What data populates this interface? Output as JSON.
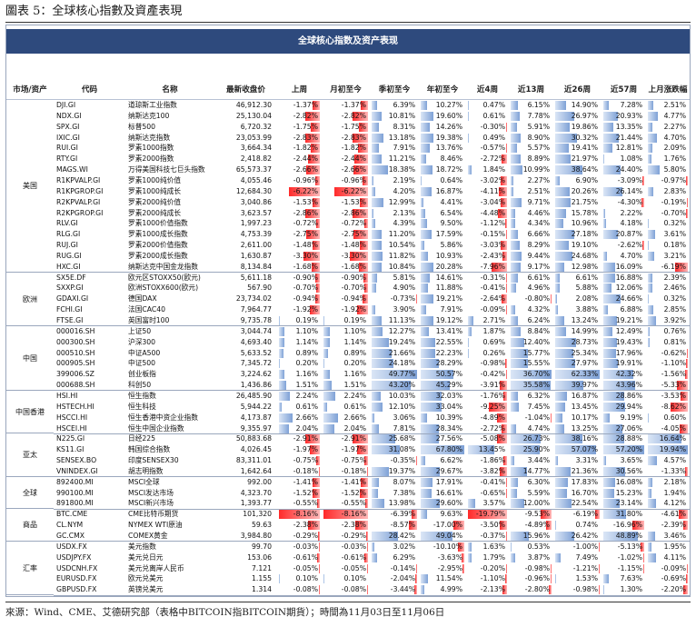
{
  "header": {
    "figure_title": "圖表 5：全球核心指數及資產表現"
  },
  "table": {
    "title": "全球核心指数及资产表现",
    "columns": [
      "市场/资产",
      "代码",
      "名称",
      "最新收盘价",
      "上周",
      "月初至今",
      "季初至今",
      "年初至今",
      "近4周",
      "近13周",
      "近26周",
      "近57周",
      "上月涨跌幅"
    ],
    "groups": [
      {
        "region": "美国",
        "rows": [
          [
            "DJI.GI",
            "道琼斯工业指数",
            "46,912.30",
            -1.37,
            -1.37,
            6.39,
            10.27,
            0.47,
            6.15,
            14.9,
            7.28,
            2.51
          ],
          [
            "NDX.GI",
            "纳斯达克100",
            "25,130.04",
            -2.82,
            -2.82,
            10.81,
            19.6,
            0.61,
            7.78,
            26.97,
            20.93,
            4.77
          ],
          [
            "SPX.GI",
            "标普500",
            "6,720.32",
            -1.75,
            -1.75,
            8.31,
            14.26,
            -0.3,
            5.91,
            19.86,
            13.35,
            2.27
          ],
          [
            "IXIC.GI",
            "纳斯达克指数",
            "23,053.99",
            -2.83,
            -2.83,
            13.18,
            19.38,
            0.49,
            8.9,
            30.32,
            21.44,
            4.7
          ],
          [
            "RUI.GI",
            "罗素1000指数",
            "3,664.34",
            -1.82,
            -1.82,
            7.91,
            13.76,
            -0.57,
            5.57,
            19.41,
            12.81,
            2.09
          ],
          [
            "RTY.GI",
            "罗素2000指数",
            "2,418.82",
            -2.44,
            -2.44,
            11.21,
            8.46,
            -2.72,
            8.89,
            21.97,
            1.08,
            1.76
          ],
          [
            "MAGS.WI",
            "万得美国科技七巨头指数",
            "65,573.37",
            -2.66,
            -2.66,
            18.38,
            18.72,
            1.84,
            10.99,
            38.64,
            24.4,
            5.8
          ],
          [
            "R1KPVALP.GI",
            "罗素1000纯价值",
            "4,055.46",
            -0.96,
            -0.96,
            2.19,
            0.64,
            -3.02,
            2.27,
            6.9,
            -3.09,
            -0.97
          ],
          [
            "R1KPGROP.GI",
            "罗素1000纯成长",
            "12,684.30",
            -6.22,
            -6.22,
            4.2,
            16.87,
            -4.11,
            2.51,
            20.26,
            26.14,
            2.83
          ],
          [
            "R2KPVALP.GI",
            "罗素2000纯价值",
            "3,040.86",
            -1.53,
            -1.53,
            12.99,
            4.41,
            -3.04,
            9.71,
            21.75,
            -4.3,
            -0.19
          ],
          [
            "R2KPGROP.GI",
            "罗素2000纯成长",
            "3,623.57",
            -2.86,
            -2.86,
            2.13,
            6.54,
            -4.48,
            4.46,
            15.78,
            2.22,
            -0.7
          ],
          [
            "RLV.GI",
            "罗素1000价值指数",
            "1,997.23",
            -0.72,
            -0.72,
            4.39,
            9.5,
            -1.12,
            4.34,
            10.96,
            4.18,
            0.32
          ],
          [
            "RLG.GI",
            "罗素1000成长指数",
            "4,753.39",
            -2.75,
            -2.75,
            11.2,
            17.59,
            -0.15,
            6.66,
            27.18,
            20.87,
            3.61
          ],
          [
            "RUJ.GI",
            "罗素2000价值指数",
            "2,611.00",
            -1.48,
            -1.48,
            10.54,
            5.86,
            -3.03,
            8.29,
            19.1,
            -2.62,
            0.18
          ],
          [
            "RUG.GI",
            "罗素2000成长指数",
            "1,630.87",
            -3.3,
            -3.3,
            11.82,
            10.93,
            -2.43,
            9.44,
            24.68,
            4.7,
            3.21
          ],
          [
            "HXC.GI",
            "纳斯达克中国金龙指数",
            "8,134.84",
            -1.68,
            -1.68,
            10.84,
            20.28,
            -7.96,
            9.17,
            12.98,
            16.09,
            -6.19
          ]
        ]
      },
      {
        "region": "欧洲",
        "rows": [
          [
            "SX5E.DF",
            "欧元区STOXX50(欧元)",
            "5,611.18",
            -0.9,
            -0.9,
            5.81,
            14.61,
            -0.31,
            6.61,
            6.61,
            16.88,
            2.39
          ],
          [
            "SXXP.GI",
            "欧洲STOXX600(欧元)",
            "567.90",
            -0.7,
            -0.7,
            4.9,
            11.88,
            -0.41,
            4.96,
            5.88,
            12.06,
            2.46
          ],
          [
            "GDAXI.GI",
            "德国DAX",
            "23,734.02",
            -0.94,
            -0.94,
            -0.73,
            19.21,
            -2.64,
            -0.8,
            2.08,
            24.66,
            0.32
          ],
          [
            "FCHI.GI",
            "法国CAC40",
            "7,964.77",
            -1.92,
            -1.92,
            3.9,
            7.91,
            -0.09,
            4.32,
            3.88,
            6.88,
            2.85
          ],
          [
            "FTSE.GI",
            "英国富时100",
            "9,735.78",
            0.19,
            0.19,
            11.13,
            19.12,
            2.71,
            6.24,
            13.24,
            19.21,
            3.92
          ]
        ]
      },
      {
        "region": "中国",
        "rows": [
          [
            "000016.SH",
            "上证50",
            "3,044.74",
            1.1,
            1.1,
            12.27,
            13.41,
            1.87,
            8.84,
            14.99,
            12.49,
            0.76
          ],
          [
            "000300.SH",
            "沪深300",
            "4,693.40",
            1.14,
            1.14,
            19.24,
            22.55,
            0.69,
            12.4,
            28.73,
            19.43,
            0.81
          ],
          [
            "000510.SH",
            "中证A500",
            "5,633.52",
            0.89,
            0.89,
            21.66,
            22.23,
            0.26,
            15.77,
            25.34,
            17.96,
            -0.62
          ],
          [
            "000905.SH",
            "中证500",
            "7,345.72",
            0.2,
            0.2,
            24.18,
            28.29,
            -0.98,
            15.55,
            27.97,
            19.91,
            -1.1
          ],
          [
            "399006.SZ",
            "创业板指",
            "3,224.62",
            1.16,
            1.16,
            49.77,
            50.57,
            -0.42,
            36.7,
            62.33,
            42.32,
            -1.56
          ],
          [
            "000688.SH",
            "科创50",
            "1,436.86",
            1.51,
            1.51,
            43.2,
            45.29,
            -3.91,
            35.58,
            39.97,
            43.96,
            -5.33
          ]
        ]
      },
      {
        "region": "中国香港",
        "rows": [
          [
            "HSI.HI",
            "恒生指数",
            "26,485.90",
            2.24,
            2.24,
            10.03,
            32.03,
            -1.76,
            6.32,
            16.87,
            28.86,
            -3.53
          ],
          [
            "HSTECH.HI",
            "恒生科技",
            "5,944.22",
            0.61,
            0.61,
            12.1,
            33.04,
            -9.25,
            7.45,
            13.45,
            29.94,
            -8.62
          ],
          [
            "HSCCI.HI",
            "恒生香港中资企业指数",
            "4,173.87",
            2.66,
            2.66,
            3.06,
            10.39,
            -4.89,
            -1.04,
            10.17,
            9.19,
            0.6
          ],
          [
            "HSCEI.HI",
            "恒生中国企业指数",
            "9,355.97",
            2.04,
            2.04,
            7.81,
            28.34,
            -2.72,
            4.74,
            13.25,
            27.06,
            -4.05
          ]
        ]
      },
      {
        "region": "亚太",
        "rows": [
          [
            "N225.GI",
            "日经225",
            "50,883.68",
            -2.91,
            -2.91,
            25.68,
            27.56,
            -5.08,
            26.73,
            38.16,
            28.88,
            16.64
          ],
          [
            "KS11.GI",
            "韩国综合指数",
            "4,026.45",
            -1.97,
            -1.97,
            31.08,
            67.8,
            13.45,
            25.9,
            57.07,
            57.2,
            19.94
          ],
          [
            "SENSEX.BO",
            "印度SENSEX30",
            "83,311.01",
            -0.75,
            -0.75,
            -0.35,
            6.62,
            -1.86,
            3.44,
            3.31,
            3.65,
            4.57
          ],
          [
            "VNINDEX.GI",
            "胡志明指数",
            "1,642.64",
            -0.18,
            -0.18,
            19.37,
            29.67,
            -3.82,
            14.77,
            21.36,
            30.56,
            -1.33
          ]
        ]
      },
      {
        "region": "全球",
        "rows": [
          [
            "892400.MI",
            "MSCI全球",
            "992.00",
            -1.41,
            -1.41,
            8.07,
            17.91,
            -0.41,
            6.3,
            17.83,
            16.08,
            2.18
          ],
          [
            "990100.MI",
            "MSCI发达市场",
            "4,323.70",
            -1.52,
            -1.52,
            7.38,
            16.61,
            -0.65,
            5.59,
            16.7,
            15.23,
            1.94
          ],
          [
            "891800.MI",
            "MSCI新兴市场",
            "1,393.77",
            -0.55,
            -0.55,
            13.98,
            29.6,
            3.57,
            12.0,
            22.54,
            23.14,
            4.12
          ]
        ]
      },
      {
        "region": "商品",
        "rows": [
          [
            "BTC.CME",
            "CME比特币期货",
            "101,320",
            -8.16,
            -8.16,
            -6.39,
            9.63,
            -19.79,
            -9.53,
            -6.19,
            31.8,
            -4.61
          ],
          [
            "CL.NYM",
            "NYMEX WTI原油",
            "59.63",
            -2.38,
            -2.38,
            -8.57,
            -17.0,
            -3.5,
            -4.89,
            0.74,
            -16.96,
            -2.39
          ],
          [
            "GC.CMX",
            "COMEX黄金",
            "3,984.80",
            -0.29,
            -0.29,
            28.42,
            49.04,
            -0.37,
            15.96,
            26.42,
            48.89,
            3.46
          ]
        ]
      },
      {
        "region": "汇率",
        "rows": [
          [
            "USDX.FX",
            "美元指数",
            "99.70",
            -0.03,
            -0.03,
            3.02,
            -10.1,
            1.63,
            0.53,
            -1.0,
            -5.13,
            1.95
          ],
          [
            "USDJPY.FX",
            "美元兑日元",
            "153.06",
            -0.61,
            -0.61,
            6.29,
            -3.63,
            1.79,
            3.87,
            7.49,
            -1.02,
            4.11
          ],
          [
            "USDCNH.FX",
            "美元兑离岸人民币",
            "7.121",
            -0.05,
            -0.05,
            -0.14,
            -2.95,
            -0.2,
            -0.98,
            -1.21,
            -1.15,
            -0.09
          ],
          [
            "EURUSD.FX",
            "欧元兑美元",
            "1.155",
            0.1,
            0.1,
            -2.04,
            11.54,
            -1.1,
            -0.96,
            1.53,
            7.63,
            -0.69
          ],
          [
            "GBPUSD.FX",
            "英镑兑美元",
            "1.314",
            -0.08,
            -0.08,
            -3.44,
            4.99,
            -2.13,
            -2.8,
            -0.98,
            1.3,
            -2.2
          ]
        ]
      }
    ]
  },
  "footer": {
    "source": "來源：Wind、CME、艾德研究部（表格中BITCOIN指BITCOIN期貨）；時間為11月03日至11月06日"
  }
}
